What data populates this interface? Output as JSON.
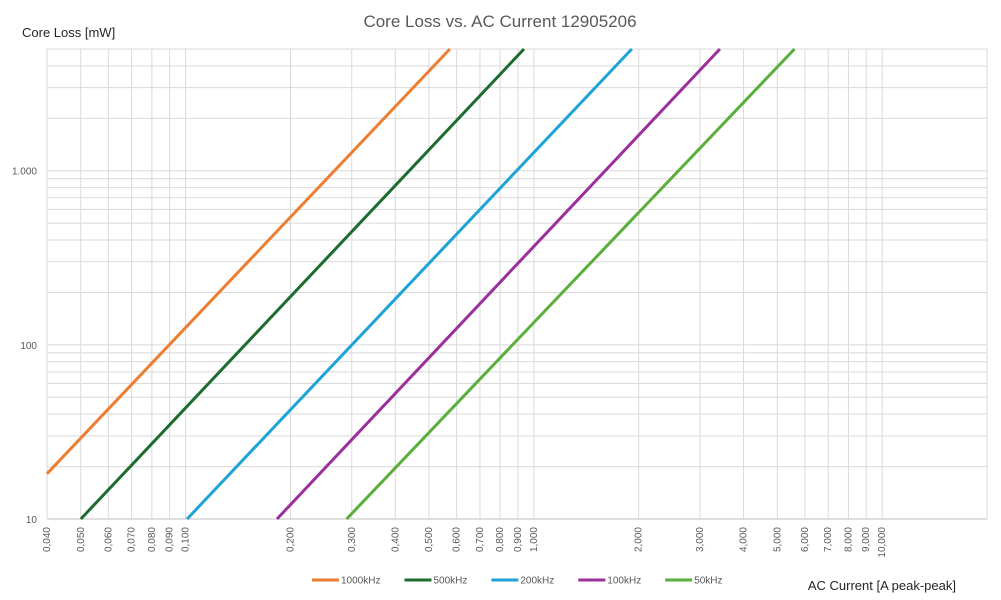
{
  "chart_data": {
    "type": "line",
    "title": "Core Loss vs. AC Current 12905206",
    "xlabel": "AC Current [A peak-peak]",
    "ylabel": "Core Loss [mW]",
    "x_scale": "log",
    "y_scale": "log",
    "xlim": [
      0.04,
      20
    ],
    "ylim": [
      10,
      5000
    ],
    "grid": true,
    "legend_position": "bottom",
    "x_ticks": [
      {
        "value": 0.04,
        "label": "0,040"
      },
      {
        "value": 0.05,
        "label": "0,050"
      },
      {
        "value": 0.06,
        "label": "0,060"
      },
      {
        "value": 0.07,
        "label": "0,070"
      },
      {
        "value": 0.08,
        "label": "0,080"
      },
      {
        "value": 0.09,
        "label": "0,090"
      },
      {
        "value": 0.1,
        "label": "0,100"
      },
      {
        "value": 0.2,
        "label": "0,200"
      },
      {
        "value": 0.3,
        "label": "0,300"
      },
      {
        "value": 0.4,
        "label": "0,400"
      },
      {
        "value": 0.5,
        "label": "0,500"
      },
      {
        "value": 0.6,
        "label": "0,600"
      },
      {
        "value": 0.7,
        "label": "0,700"
      },
      {
        "value": 0.8,
        "label": "0,800"
      },
      {
        "value": 0.9,
        "label": "0,900"
      },
      {
        "value": 1,
        "label": "1,000"
      },
      {
        "value": 2,
        "label": "2,000"
      },
      {
        "value": 3,
        "label": "3,000"
      },
      {
        "value": 4,
        "label": "4,000"
      },
      {
        "value": 5,
        "label": "5,000"
      },
      {
        "value": 6,
        "label": "6,000"
      },
      {
        "value": 7,
        "label": "7,000"
      },
      {
        "value": 8,
        "label": "8,000"
      },
      {
        "value": 9,
        "label": "9,000"
      },
      {
        "value": 10,
        "label": "10,000"
      }
    ],
    "y_ticks": [
      {
        "value": 10,
        "label": "10"
      },
      {
        "value": 100,
        "label": "100"
      },
      {
        "value": 1000,
        "label": "1.000"
      }
    ],
    "series": [
      {
        "name": "1000kHz",
        "color": "#ED7D31",
        "x": [
          0.04,
          0.574
        ],
        "y": [
          18.2,
          5000
        ]
      },
      {
        "name": "500kHz",
        "color": "#1E6B2E",
        "x": [
          0.05,
          0.937
        ],
        "y": [
          10,
          5000
        ]
      },
      {
        "name": "200kHz",
        "color": "#1FA3D6",
        "x": [
          0.101,
          1.91
        ],
        "y": [
          10,
          5000
        ]
      },
      {
        "name": "100kHz",
        "color": "#9B2F9B",
        "x": [
          0.183,
          3.42
        ],
        "y": [
          10,
          5000
        ]
      },
      {
        "name": "50kHz",
        "color": "#5AAE3C",
        "x": [
          0.29,
          5.6
        ],
        "y": [
          10,
          5000
        ]
      }
    ]
  }
}
